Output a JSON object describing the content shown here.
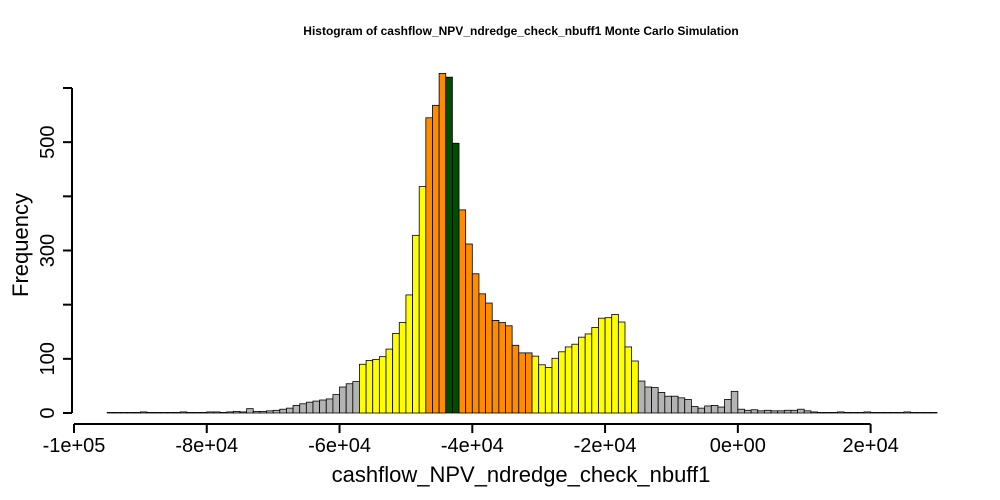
{
  "chart_data": {
    "type": "bar",
    "title": "Histogram of  cashflow_NPV_ndredge_check_nbuff1  Monte Carlo Simulation",
    "xlabel": "cashflow_NPV_ndredge_check_nbuff1",
    "ylabel": "Frequency",
    "xlim": [
      -100000,
      30000
    ],
    "ylim": [
      0,
      600
    ],
    "bin_width": 1000,
    "x_ticks": [
      -100000,
      -80000,
      -60000,
      -40000,
      -20000,
      0,
      20000
    ],
    "x_tick_labels": [
      "-1e+05",
      "-8e+04",
      "-6e+04",
      "-4e+04",
      "-2e+04",
      "0e+00",
      "2e+04"
    ],
    "y_ticks": [
      0,
      100,
      200,
      300,
      400,
      500,
      600
    ],
    "y_tick_labels": [
      "0",
      "100",
      "",
      "300",
      "",
      "500",
      ""
    ],
    "grid": false,
    "legend": "none",
    "colors": {
      "gray": "#b3b3b3",
      "yellow": "#ffff00",
      "orange": "#ff8c00",
      "green": "#004d00"
    },
    "series": [
      {
        "bins": [
          {
            "x": -95000,
            "value": 1,
            "color": "gray"
          },
          {
            "x": -94000,
            "value": 1,
            "color": "gray"
          },
          {
            "x": -93000,
            "value": 1,
            "color": "gray"
          },
          {
            "x": -92000,
            "value": 1,
            "color": "gray"
          },
          {
            "x": -91000,
            "value": 1,
            "color": "gray"
          },
          {
            "x": -90000,
            "value": 2,
            "color": "gray"
          },
          {
            "x": -89000,
            "value": 1,
            "color": "gray"
          },
          {
            "x": -88000,
            "value": 1,
            "color": "gray"
          },
          {
            "x": -87000,
            "value": 1,
            "color": "gray"
          },
          {
            "x": -86000,
            "value": 1,
            "color": "gray"
          },
          {
            "x": -85000,
            "value": 1,
            "color": "gray"
          },
          {
            "x": -84000,
            "value": 2,
            "color": "gray"
          },
          {
            "x": -83000,
            "value": 1,
            "color": "gray"
          },
          {
            "x": -82000,
            "value": 1,
            "color": "gray"
          },
          {
            "x": -81000,
            "value": 1,
            "color": "gray"
          },
          {
            "x": -80000,
            "value": 2,
            "color": "gray"
          },
          {
            "x": -79000,
            "value": 2,
            "color": "gray"
          },
          {
            "x": -78000,
            "value": 1,
            "color": "gray"
          },
          {
            "x": -77000,
            "value": 2,
            "color": "gray"
          },
          {
            "x": -76000,
            "value": 3,
            "color": "gray"
          },
          {
            "x": -75000,
            "value": 2,
            "color": "gray"
          },
          {
            "x": -74000,
            "value": 8,
            "color": "gray"
          },
          {
            "x": -73000,
            "value": 3,
            "color": "gray"
          },
          {
            "x": -72000,
            "value": 3,
            "color": "gray"
          },
          {
            "x": -71000,
            "value": 4,
            "color": "gray"
          },
          {
            "x": -70000,
            "value": 5,
            "color": "gray"
          },
          {
            "x": -69000,
            "value": 7,
            "color": "gray"
          },
          {
            "x": -68000,
            "value": 9,
            "color": "gray"
          },
          {
            "x": -67000,
            "value": 14,
            "color": "gray"
          },
          {
            "x": -66000,
            "value": 17,
            "color": "gray"
          },
          {
            "x": -65000,
            "value": 20,
            "color": "gray"
          },
          {
            "x": -64000,
            "value": 22,
            "color": "gray"
          },
          {
            "x": -63000,
            "value": 24,
            "color": "gray"
          },
          {
            "x": -62000,
            "value": 26,
            "color": "gray"
          },
          {
            "x": -61000,
            "value": 34,
            "color": "gray"
          },
          {
            "x": -60000,
            "value": 48,
            "color": "gray"
          },
          {
            "x": -59000,
            "value": 54,
            "color": "gray"
          },
          {
            "x": -58000,
            "value": 58,
            "color": "gray"
          },
          {
            "x": -57000,
            "value": 90,
            "color": "yellow"
          },
          {
            "x": -56000,
            "value": 97,
            "color": "yellow"
          },
          {
            "x": -55000,
            "value": 99,
            "color": "yellow"
          },
          {
            "x": -54000,
            "value": 104,
            "color": "yellow"
          },
          {
            "x": -53000,
            "value": 118,
            "color": "yellow"
          },
          {
            "x": -52000,
            "value": 147,
            "color": "yellow"
          },
          {
            "x": -51000,
            "value": 167,
            "color": "yellow"
          },
          {
            "x": -50000,
            "value": 218,
            "color": "yellow"
          },
          {
            "x": -49000,
            "value": 328,
            "color": "yellow"
          },
          {
            "x": -48000,
            "value": 418,
            "color": "yellow"
          },
          {
            "x": -47000,
            "value": 545,
            "color": "orange"
          },
          {
            "x": -46000,
            "value": 568,
            "color": "orange"
          },
          {
            "x": -45000,
            "value": 627,
            "color": "orange"
          },
          {
            "x": -44000,
            "value": 620,
            "color": "green"
          },
          {
            "x": -43000,
            "value": 498,
            "color": "green"
          },
          {
            "x": -42000,
            "value": 375,
            "color": "orange"
          },
          {
            "x": -41000,
            "value": 312,
            "color": "orange"
          },
          {
            "x": -40000,
            "value": 257,
            "color": "orange"
          },
          {
            "x": -39000,
            "value": 220,
            "color": "orange"
          },
          {
            "x": -38000,
            "value": 203,
            "color": "orange"
          },
          {
            "x": -37000,
            "value": 171,
            "color": "orange"
          },
          {
            "x": -36000,
            "value": 167,
            "color": "orange"
          },
          {
            "x": -35000,
            "value": 161,
            "color": "orange"
          },
          {
            "x": -34000,
            "value": 125,
            "color": "orange"
          },
          {
            "x": -33000,
            "value": 111,
            "color": "orange"
          },
          {
            "x": -32000,
            "value": 111,
            "color": "orange"
          },
          {
            "x": -31000,
            "value": 105,
            "color": "yellow"
          },
          {
            "x": -30000,
            "value": 89,
            "color": "yellow"
          },
          {
            "x": -29000,
            "value": 84,
            "color": "yellow"
          },
          {
            "x": -28000,
            "value": 101,
            "color": "yellow"
          },
          {
            "x": -27000,
            "value": 113,
            "color": "yellow"
          },
          {
            "x": -26000,
            "value": 122,
            "color": "yellow"
          },
          {
            "x": -25000,
            "value": 127,
            "color": "yellow"
          },
          {
            "x": -24000,
            "value": 140,
            "color": "yellow"
          },
          {
            "x": -23000,
            "value": 146,
            "color": "yellow"
          },
          {
            "x": -22000,
            "value": 158,
            "color": "yellow"
          },
          {
            "x": -21000,
            "value": 175,
            "color": "yellow"
          },
          {
            "x": -20000,
            "value": 176,
            "color": "yellow"
          },
          {
            "x": -19000,
            "value": 182,
            "color": "yellow"
          },
          {
            "x": -18000,
            "value": 168,
            "color": "yellow"
          },
          {
            "x": -17000,
            "value": 122,
            "color": "yellow"
          },
          {
            "x": -16000,
            "value": 96,
            "color": "yellow"
          },
          {
            "x": -15000,
            "value": 59,
            "color": "gray"
          },
          {
            "x": -14000,
            "value": 48,
            "color": "gray"
          },
          {
            "x": -13000,
            "value": 47,
            "color": "gray"
          },
          {
            "x": -12000,
            "value": 38,
            "color": "gray"
          },
          {
            "x": -11000,
            "value": 31,
            "color": "gray"
          },
          {
            "x": -10000,
            "value": 31,
            "color": "gray"
          },
          {
            "x": -9000,
            "value": 28,
            "color": "gray"
          },
          {
            "x": -8000,
            "value": 25,
            "color": "gray"
          },
          {
            "x": -7000,
            "value": 12,
            "color": "gray"
          },
          {
            "x": -6000,
            "value": 9,
            "color": "gray"
          },
          {
            "x": -5000,
            "value": 13,
            "color": "gray"
          },
          {
            "x": -4000,
            "value": 14,
            "color": "gray"
          },
          {
            "x": -3000,
            "value": 11,
            "color": "gray"
          },
          {
            "x": -2000,
            "value": 25,
            "color": "gray"
          },
          {
            "x": -1000,
            "value": 40,
            "color": "gray"
          },
          {
            "x": 0,
            "value": 7,
            "color": "gray"
          },
          {
            "x": 1000,
            "value": 5,
            "color": "gray"
          },
          {
            "x": 2000,
            "value": 6,
            "color": "gray"
          },
          {
            "x": 3000,
            "value": 4,
            "color": "gray"
          },
          {
            "x": 4000,
            "value": 5,
            "color": "gray"
          },
          {
            "x": 5000,
            "value": 4,
            "color": "gray"
          },
          {
            "x": 6000,
            "value": 4,
            "color": "gray"
          },
          {
            "x": 7000,
            "value": 5,
            "color": "gray"
          },
          {
            "x": 8000,
            "value": 5,
            "color": "gray"
          },
          {
            "x": 9000,
            "value": 7,
            "color": "gray"
          },
          {
            "x": 10000,
            "value": 4,
            "color": "gray"
          },
          {
            "x": 11000,
            "value": 2,
            "color": "gray"
          },
          {
            "x": 12000,
            "value": 1,
            "color": "gray"
          },
          {
            "x": 13000,
            "value": 1,
            "color": "gray"
          },
          {
            "x": 14000,
            "value": 1,
            "color": "gray"
          },
          {
            "x": 15000,
            "value": 2,
            "color": "gray"
          },
          {
            "x": 16000,
            "value": 1,
            "color": "gray"
          },
          {
            "x": 17000,
            "value": 1,
            "color": "gray"
          },
          {
            "x": 18000,
            "value": 1,
            "color": "gray"
          },
          {
            "x": 19000,
            "value": 2,
            "color": "gray"
          },
          {
            "x": 20000,
            "value": 1,
            "color": "gray"
          },
          {
            "x": 21000,
            "value": 1,
            "color": "gray"
          },
          {
            "x": 22000,
            "value": 1,
            "color": "gray"
          },
          {
            "x": 23000,
            "value": 1,
            "color": "gray"
          },
          {
            "x": 24000,
            "value": 1,
            "color": "gray"
          },
          {
            "x": 25000,
            "value": 2,
            "color": "gray"
          },
          {
            "x": 26000,
            "value": 1,
            "color": "gray"
          },
          {
            "x": 27000,
            "value": 1,
            "color": "gray"
          },
          {
            "x": 28000,
            "value": 1,
            "color": "gray"
          },
          {
            "x": 29000,
            "value": 1,
            "color": "gray"
          }
        ]
      }
    ]
  }
}
